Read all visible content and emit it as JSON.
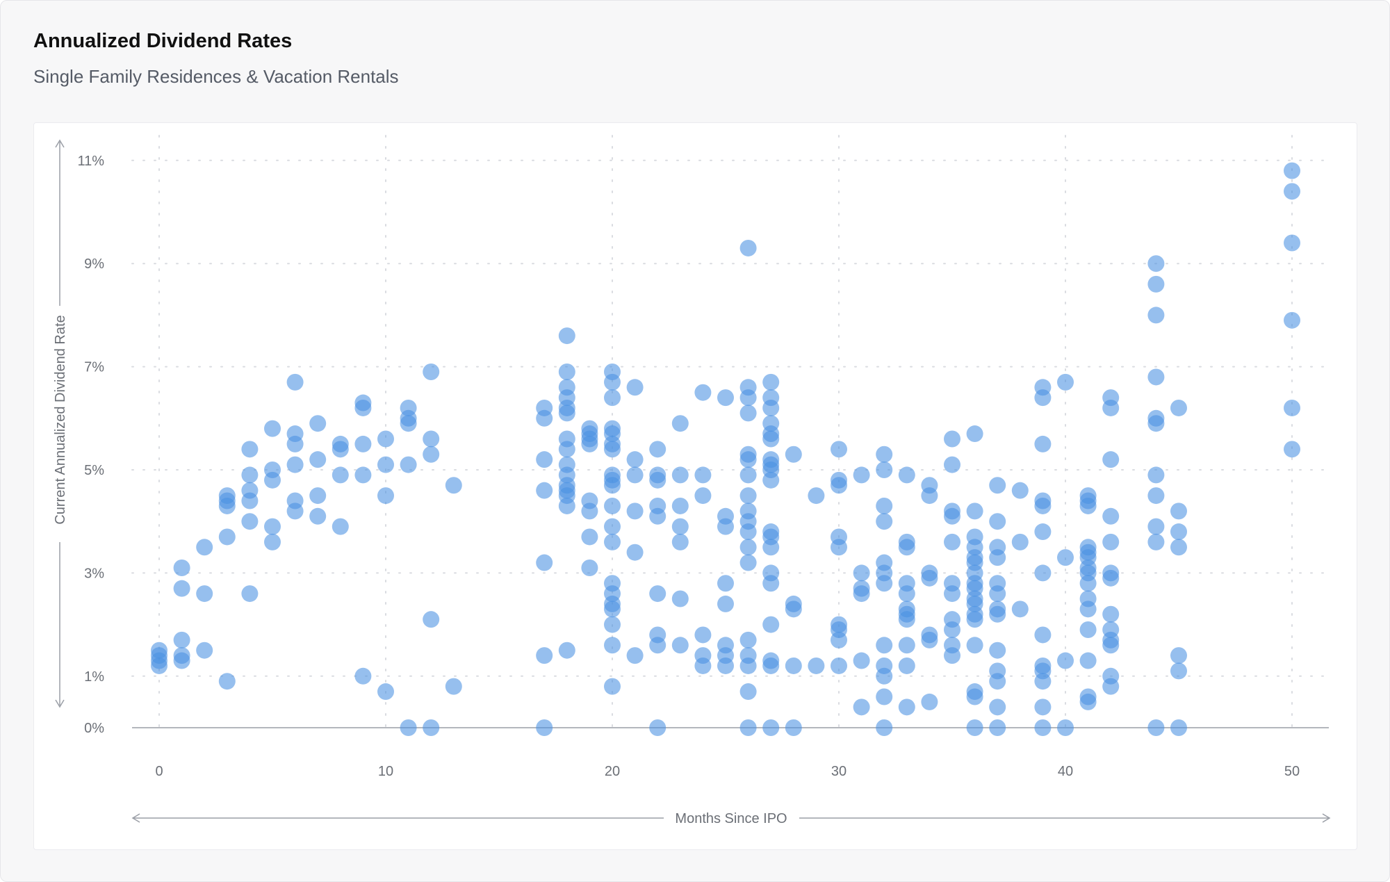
{
  "title": "Annualized Dividend Rates",
  "subtitle": "Single Family Residences & Vacation Rentals",
  "colors": {
    "point": "#4a90e2",
    "axis": "#9a9ea6",
    "grid": "#d9dbe0"
  },
  "chart_data": {
    "type": "scatter",
    "title": "Annualized Dividend Rates",
    "subtitle": "Single Family Residences & Vacation Rentals",
    "xlabel": "Months Since IPO",
    "ylabel": "Current Annualized Dividend Rate",
    "xlim": [
      -1.1,
      51.7
    ],
    "ylim": [
      0,
      11
    ],
    "x_ticks": [
      0,
      10,
      20,
      30,
      40,
      50
    ],
    "x_tick_labels": [
      "0",
      "10",
      "20",
      "30",
      "40",
      "50"
    ],
    "y_ticks": [
      0,
      1,
      3,
      5,
      7,
      9,
      11
    ],
    "y_tick_labels": [
      "0%",
      "1%",
      "3%",
      "5%",
      "7%",
      "9%",
      "11%"
    ],
    "grid": true,
    "points": [
      [
        0,
        1.4
      ],
      [
        0,
        1.3
      ],
      [
        0,
        1.2
      ],
      [
        0,
        1.5
      ],
      [
        1,
        3.1
      ],
      [
        1,
        2.7
      ],
      [
        1,
        1.7
      ],
      [
        1,
        1.4
      ],
      [
        1,
        1.3
      ],
      [
        2,
        3.5
      ],
      [
        2,
        2.6
      ],
      [
        2,
        1.5
      ],
      [
        3,
        4.5
      ],
      [
        3,
        4.4
      ],
      [
        3,
        4.3
      ],
      [
        3,
        3.7
      ],
      [
        3,
        0.9
      ],
      [
        4,
        5.4
      ],
      [
        4,
        4.9
      ],
      [
        4,
        4.6
      ],
      [
        4,
        4.4
      ],
      [
        4,
        4.0
      ],
      [
        4,
        2.6
      ],
      [
        5,
        5.8
      ],
      [
        5,
        5.0
      ],
      [
        5,
        4.8
      ],
      [
        5,
        3.9
      ],
      [
        5,
        3.6
      ],
      [
        6,
        6.7
      ],
      [
        6,
        5.7
      ],
      [
        6,
        5.5
      ],
      [
        6,
        5.1
      ],
      [
        6,
        4.4
      ],
      [
        6,
        4.2
      ],
      [
        7,
        5.9
      ],
      [
        7,
        5.2
      ],
      [
        7,
        4.5
      ],
      [
        7,
        4.1
      ],
      [
        8,
        5.5
      ],
      [
        8,
        5.4
      ],
      [
        8,
        4.9
      ],
      [
        8,
        3.9
      ],
      [
        9,
        6.3
      ],
      [
        9,
        6.2
      ],
      [
        9,
        5.5
      ],
      [
        9,
        4.9
      ],
      [
        9,
        1.0
      ],
      [
        10,
        5.6
      ],
      [
        10,
        5.1
      ],
      [
        10,
        4.5
      ],
      [
        10,
        0.7
      ],
      [
        11,
        6.2
      ],
      [
        11,
        6.0
      ],
      [
        11,
        5.9
      ],
      [
        11,
        5.1
      ],
      [
        11,
        0
      ],
      [
        12,
        6.9
      ],
      [
        12,
        5.6
      ],
      [
        12,
        5.3
      ],
      [
        12,
        2.1
      ],
      [
        12,
        0
      ],
      [
        13,
        4.7
      ],
      [
        13,
        0.8
      ],
      [
        17,
        6.2
      ],
      [
        17,
        6.0
      ],
      [
        17,
        5.2
      ],
      [
        17,
        4.6
      ],
      [
        17,
        3.2
      ],
      [
        17,
        1.4
      ],
      [
        17,
        0
      ],
      [
        18,
        7.6
      ],
      [
        18,
        6.9
      ],
      [
        18,
        6.6
      ],
      [
        18,
        6.4
      ],
      [
        18,
        6.2
      ],
      [
        18,
        6.1
      ],
      [
        18,
        5.6
      ],
      [
        18,
        5.4
      ],
      [
        18,
        5.1
      ],
      [
        18,
        4.9
      ],
      [
        18,
        4.7
      ],
      [
        18,
        4.6
      ],
      [
        18,
        4.5
      ],
      [
        18,
        4.3
      ],
      [
        18,
        1.5
      ],
      [
        19,
        5.8
      ],
      [
        19,
        5.7
      ],
      [
        19,
        5.6
      ],
      [
        19,
        5.5
      ],
      [
        19,
        4.4
      ],
      [
        19,
        4.2
      ],
      [
        19,
        3.7
      ],
      [
        19,
        3.1
      ],
      [
        20,
        6.9
      ],
      [
        20,
        6.7
      ],
      [
        20,
        6.4
      ],
      [
        20,
        5.8
      ],
      [
        20,
        5.7
      ],
      [
        20,
        5.5
      ],
      [
        20,
        5.4
      ],
      [
        20,
        4.9
      ],
      [
        20,
        4.8
      ],
      [
        20,
        4.7
      ],
      [
        20,
        4.3
      ],
      [
        20,
        3.9
      ],
      [
        20,
        3.6
      ],
      [
        20,
        2.8
      ],
      [
        20,
        2.6
      ],
      [
        20,
        2.4
      ],
      [
        20,
        2.3
      ],
      [
        20,
        2.0
      ],
      [
        20,
        1.6
      ],
      [
        20,
        0.8
      ],
      [
        21,
        6.6
      ],
      [
        21,
        5.2
      ],
      [
        21,
        4.9
      ],
      [
        21,
        4.2
      ],
      [
        21,
        3.4
      ],
      [
        21,
        1.4
      ],
      [
        22,
        5.4
      ],
      [
        22,
        4.9
      ],
      [
        22,
        4.8
      ],
      [
        22,
        4.3
      ],
      [
        22,
        4.1
      ],
      [
        22,
        2.6
      ],
      [
        22,
        1.8
      ],
      [
        22,
        1.6
      ],
      [
        22,
        0
      ],
      [
        23,
        5.9
      ],
      [
        23,
        4.9
      ],
      [
        23,
        4.3
      ],
      [
        23,
        3.9
      ],
      [
        23,
        3.6
      ],
      [
        23,
        2.5
      ],
      [
        23,
        1.6
      ],
      [
        24,
        6.5
      ],
      [
        24,
        4.9
      ],
      [
        24,
        4.5
      ],
      [
        24,
        1.8
      ],
      [
        24,
        1.4
      ],
      [
        24,
        1.2
      ],
      [
        25,
        6.4
      ],
      [
        25,
        4.1
      ],
      [
        25,
        3.9
      ],
      [
        25,
        2.8
      ],
      [
        25,
        2.4
      ],
      [
        25,
        1.6
      ],
      [
        25,
        1.4
      ],
      [
        25,
        1.2
      ],
      [
        26,
        9.3
      ],
      [
        26,
        6.6
      ],
      [
        26,
        6.4
      ],
      [
        26,
        6.1
      ],
      [
        26,
        5.3
      ],
      [
        26,
        5.2
      ],
      [
        26,
        4.9
      ],
      [
        26,
        4.5
      ],
      [
        26,
        4.2
      ],
      [
        26,
        4.0
      ],
      [
        26,
        3.8
      ],
      [
        26,
        3.5
      ],
      [
        26,
        3.2
      ],
      [
        26,
        1.7
      ],
      [
        26,
        1.4
      ],
      [
        26,
        1.2
      ],
      [
        26,
        0.7
      ],
      [
        26,
        0
      ],
      [
        27,
        6.7
      ],
      [
        27,
        6.4
      ],
      [
        27,
        6.2
      ],
      [
        27,
        5.9
      ],
      [
        27,
        5.7
      ],
      [
        27,
        5.6
      ],
      [
        27,
        5.2
      ],
      [
        27,
        5.1
      ],
      [
        27,
        5.0
      ],
      [
        27,
        4.8
      ],
      [
        27,
        3.8
      ],
      [
        27,
        3.7
      ],
      [
        27,
        3.5
      ],
      [
        27,
        3.0
      ],
      [
        27,
        2.8
      ],
      [
        27,
        2.0
      ],
      [
        27,
        1.3
      ],
      [
        27,
        1.2
      ],
      [
        27,
        0
      ],
      [
        28,
        5.3
      ],
      [
        28,
        2.4
      ],
      [
        28,
        2.3
      ],
      [
        28,
        1.2
      ],
      [
        28,
        0
      ],
      [
        29,
        4.5
      ],
      [
        29,
        1.2
      ],
      [
        30,
        5.4
      ],
      [
        30,
        4.8
      ],
      [
        30,
        4.7
      ],
      [
        30,
        3.7
      ],
      [
        30,
        3.5
      ],
      [
        30,
        2.0
      ],
      [
        30,
        1.9
      ],
      [
        30,
        1.7
      ],
      [
        30,
        1.2
      ],
      [
        31,
        4.9
      ],
      [
        31,
        3.0
      ],
      [
        31,
        2.7
      ],
      [
        31,
        2.6
      ],
      [
        31,
        1.3
      ],
      [
        31,
        0.4
      ],
      [
        32,
        5.3
      ],
      [
        32,
        5.0
      ],
      [
        32,
        4.3
      ],
      [
        32,
        4.0
      ],
      [
        32,
        3.2
      ],
      [
        32,
        3.0
      ],
      [
        32,
        2.8
      ],
      [
        32,
        1.6
      ],
      [
        32,
        1.2
      ],
      [
        32,
        1.0
      ],
      [
        32,
        0.6
      ],
      [
        32,
        0
      ],
      [
        33,
        4.9
      ],
      [
        33,
        3.6
      ],
      [
        33,
        3.5
      ],
      [
        33,
        2.8
      ],
      [
        33,
        2.6
      ],
      [
        33,
        2.3
      ],
      [
        33,
        2.2
      ],
      [
        33,
        2.1
      ],
      [
        33,
        1.6
      ],
      [
        33,
        1.2
      ],
      [
        33,
        0.4
      ],
      [
        34,
        4.7
      ],
      [
        34,
        4.5
      ],
      [
        34,
        3.0
      ],
      [
        34,
        2.9
      ],
      [
        34,
        1.8
      ],
      [
        34,
        1.7
      ],
      [
        34,
        0.5
      ],
      [
        35,
        5.6
      ],
      [
        35,
        5.1
      ],
      [
        35,
        4.2
      ],
      [
        35,
        4.1
      ],
      [
        35,
        3.6
      ],
      [
        35,
        2.8
      ],
      [
        35,
        2.6
      ],
      [
        35,
        2.1
      ],
      [
        35,
        1.9
      ],
      [
        35,
        1.6
      ],
      [
        35,
        1.4
      ],
      [
        36,
        5.7
      ],
      [
        36,
        4.2
      ],
      [
        36,
        3.7
      ],
      [
        36,
        3.5
      ],
      [
        36,
        3.3
      ],
      [
        36,
        3.2
      ],
      [
        36,
        3.0
      ],
      [
        36,
        2.8
      ],
      [
        36,
        2.7
      ],
      [
        36,
        2.5
      ],
      [
        36,
        2.4
      ],
      [
        36,
        2.2
      ],
      [
        36,
        2.1
      ],
      [
        36,
        1.6
      ],
      [
        36,
        0.7
      ],
      [
        36,
        0.6
      ],
      [
        36,
        0
      ],
      [
        37,
        4.7
      ],
      [
        37,
        4.0
      ],
      [
        37,
        3.5
      ],
      [
        37,
        3.3
      ],
      [
        37,
        2.8
      ],
      [
        37,
        2.6
      ],
      [
        37,
        2.3
      ],
      [
        37,
        2.2
      ],
      [
        37,
        1.5
      ],
      [
        37,
        1.1
      ],
      [
        37,
        0.9
      ],
      [
        37,
        0.4
      ],
      [
        37,
        0
      ],
      [
        38,
        4.6
      ],
      [
        38,
        3.6
      ],
      [
        38,
        2.3
      ],
      [
        39,
        6.6
      ],
      [
        39,
        6.4
      ],
      [
        39,
        5.5
      ],
      [
        39,
        4.4
      ],
      [
        39,
        4.3
      ],
      [
        39,
        3.8
      ],
      [
        39,
        3.0
      ],
      [
        39,
        1.8
      ],
      [
        39,
        1.2
      ],
      [
        39,
        1.1
      ],
      [
        39,
        0.9
      ],
      [
        39,
        0.4
      ],
      [
        39,
        0
      ],
      [
        40,
        6.7
      ],
      [
        40,
        3.3
      ],
      [
        40,
        1.3
      ],
      [
        40,
        0
      ],
      [
        41,
        4.5
      ],
      [
        41,
        4.4
      ],
      [
        41,
        4.3
      ],
      [
        41,
        3.5
      ],
      [
        41,
        3.4
      ],
      [
        41,
        3.3
      ],
      [
        41,
        3.1
      ],
      [
        41,
        3.0
      ],
      [
        41,
        2.8
      ],
      [
        41,
        2.5
      ],
      [
        41,
        2.3
      ],
      [
        41,
        1.9
      ],
      [
        41,
        1.3
      ],
      [
        41,
        0.6
      ],
      [
        41,
        0.5
      ],
      [
        42,
        6.4
      ],
      [
        42,
        6.2
      ],
      [
        42,
        5.2
      ],
      [
        42,
        4.1
      ],
      [
        42,
        3.6
      ],
      [
        42,
        3.0
      ],
      [
        42,
        2.9
      ],
      [
        42,
        2.2
      ],
      [
        42,
        1.9
      ],
      [
        42,
        1.7
      ],
      [
        42,
        1.6
      ],
      [
        42,
        1.0
      ],
      [
        42,
        0.8
      ],
      [
        44,
        9.0
      ],
      [
        44,
        8.6
      ],
      [
        44,
        8.0
      ],
      [
        44,
        6.8
      ],
      [
        44,
        6.0
      ],
      [
        44,
        5.9
      ],
      [
        44,
        4.9
      ],
      [
        44,
        4.5
      ],
      [
        44,
        3.9
      ],
      [
        44,
        3.6
      ],
      [
        44,
        0
      ],
      [
        45,
        6.2
      ],
      [
        45,
        4.2
      ],
      [
        45,
        3.8
      ],
      [
        45,
        3.5
      ],
      [
        45,
        1.4
      ],
      [
        45,
        1.1
      ],
      [
        45,
        0
      ],
      [
        50,
        10.8
      ],
      [
        50,
        10.4
      ],
      [
        50,
        9.4
      ],
      [
        50,
        7.9
      ],
      [
        50,
        6.2
      ],
      [
        50,
        5.4
      ]
    ]
  }
}
